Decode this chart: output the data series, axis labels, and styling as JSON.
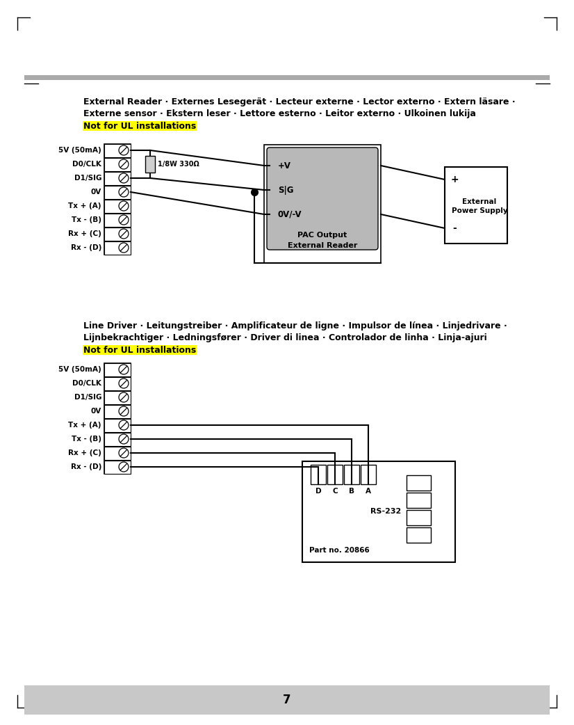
{
  "page_width": 8.26,
  "page_height": 10.42,
  "background_color": "#ffffff",
  "footer_color": "#c8c8c8",
  "page_number": "7",
  "section1_title_line1": "External Reader · Externes Lesegerät · Lecteur externe · Lector externo · Extern läsare ·",
  "section1_title_line2": "Externe sensor · Ekstern leser · Lettore esterno · Leitor externo · Ulkoinen lukija",
  "section1_subtitle": "Not for UL installations",
  "section2_title_line1": "Line Driver · Leitungstreiber · Amplificateur de ligne · Impulsor de línea · Linjedrivare ·",
  "section2_title_line2": "Lijnbekrachtiger · Ledningsfører · Driver di linea · Controlador de linha · Linja-ajuri",
  "section2_subtitle": "Not for UL installations",
  "yellow": "#ffff00",
  "connector_labels": [
    "5V (50mA)",
    "D0/CLK",
    "D1/SIG",
    "0V",
    "Tx + (A)",
    "Tx - (B)",
    "Rx + (C)",
    "Rx - (D)"
  ],
  "pac_labels": [
    "+V",
    "S|G",
    "0V/-V"
  ],
  "pac_title_line1": "PAC Output",
  "pac_title_line2": "External Reader",
  "part_no": "Part no. 20866",
  "rs232_label": "RS-232",
  "dcba_labels": [
    "D",
    "C",
    "B",
    "A"
  ],
  "resistor_label": "1/8W 330Ω",
  "ext_power_plus": "+",
  "ext_power_minus": "-",
  "ext_power_label1": "External",
  "ext_power_label2": "Power Supply"
}
